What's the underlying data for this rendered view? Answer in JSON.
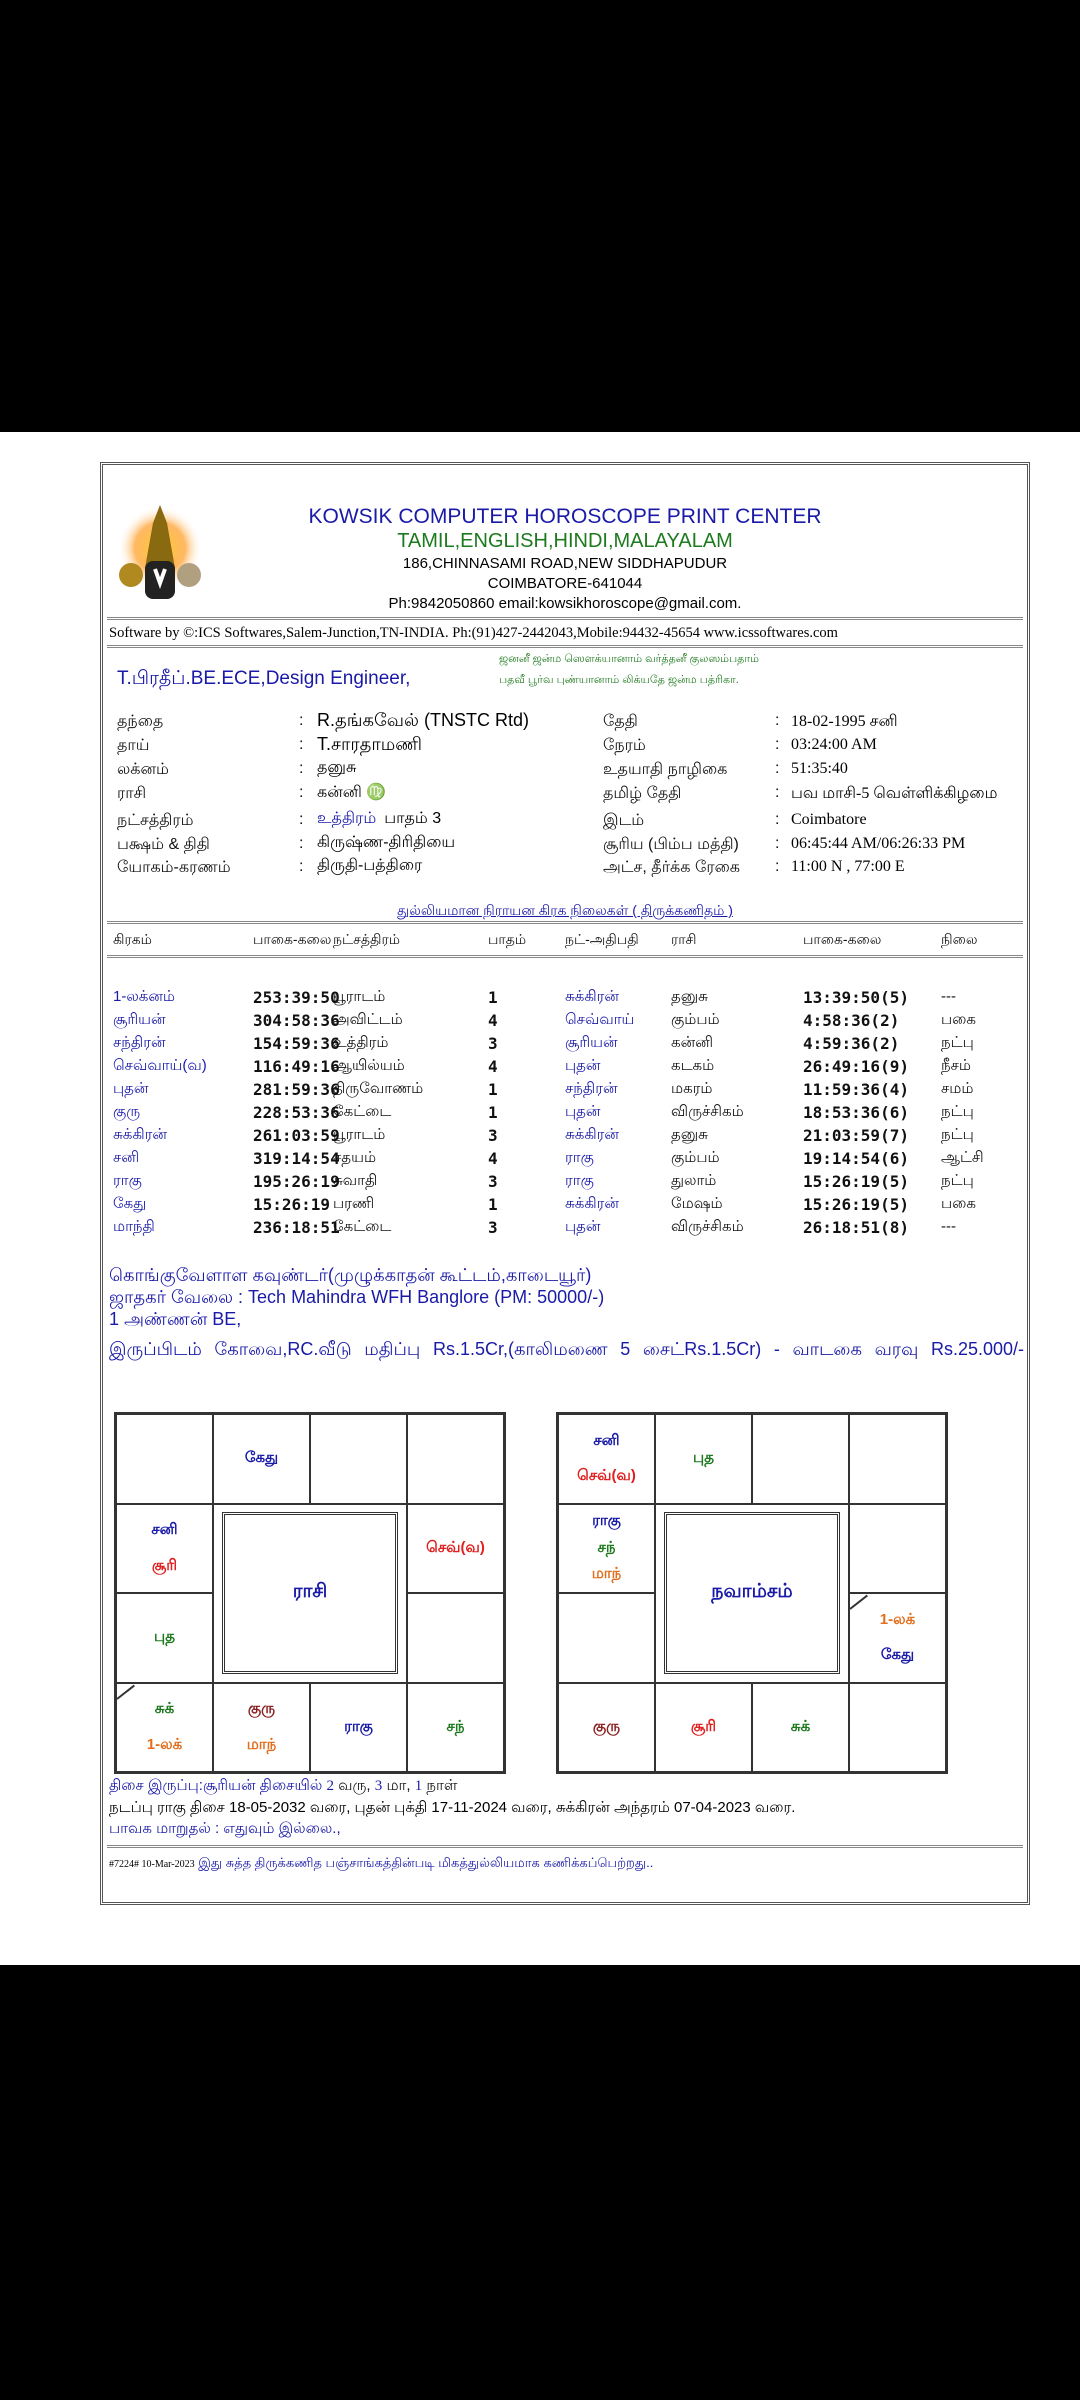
{
  "header": {
    "title": "KOWSIK COMPUTER HOROSCOPE PRINT CENTER",
    "languages": "TAMIL,ENGLISH,HINDI,MALAYALAM",
    "address1": "186,CHINNASAMI ROAD,NEW SIDDHAPUDUR",
    "address2": "COIMBATORE-641044",
    "contact": "Ph:9842050860 email:kowsikhoroscope@gmail.com.",
    "software": "Software by ©:ICS Softwares,Salem-Junction,TN-INDIA. Ph:(91)427-2442043,Mobile:94432-45654 www.icssoftwares.com",
    "colors": {
      "title": "#1a1aa8",
      "languages": "#1e7a1e"
    }
  },
  "person": {
    "name": "T.பிரதீப்.BE.ECE,Design Engineer,",
    "mantra1": "ஜனனீ ஜன்ம  ஸௌக்யானாம் வர்த்தனீ குலஸம்பதாம்",
    "mantra2": "பதவீ பூர்வ புண்யானாம் லிக்யதே ஜன்ம பத்ரிகா."
  },
  "details": {
    "left": [
      {
        "label": "தந்தை",
        "value": "R.தங்கவேல் (TNSTC Rtd)"
      },
      {
        "label": "தாய்",
        "value": "T.சாரதாமணி"
      },
      {
        "label": "லக்னம்",
        "value": "தனுசு"
      },
      {
        "label": "ராசி",
        "value": "கன்னி  ♍"
      },
      {
        "label": "நட்சத்திரம்",
        "value": "உத்திரம்",
        "extra": "பாதம்  3"
      },
      {
        "label": "பக்ஷம் & திதி",
        "value": "கிருஷ்ண-திரிதியை"
      },
      {
        "label": "யோகம்-கரணம்",
        "value": "திருதி-பத்திரை"
      }
    ],
    "right": [
      {
        "label": "தேதி",
        "value": "18-02-1995 சனி"
      },
      {
        "label": "நேரம்",
        "value": "03:24:00 AM"
      },
      {
        "label": "உதயாதி நாழிகை",
        "value": "51:35:40"
      },
      {
        "label": "தமிழ் தேதி",
        "value": "பவ மாசி-5 வெள்ளிக்கிழமை"
      },
      {
        "label": "இடம்",
        "value": "Coimbatore"
      },
      {
        "label": "சூரிய (பிம்ப மத்தி)",
        "value": "06:45:44 AM/06:26:33 PM"
      },
      {
        "label": "அட்ச, தீர்க்க ரேகை",
        "value": "11:00 N , 77:00 E"
      }
    ]
  },
  "planet_table": {
    "title": "துல்லியமான நிராயன கிரக நிலைகள் ( திருக்கணிதம் )",
    "headers": [
      "கிரகம்",
      "பாகை-கலை",
      "நட்சத்திரம்",
      "பாதம்",
      "நட்-அதிபதி",
      "ராசி",
      "பாகை-கலை",
      "நிலை"
    ],
    "rows": [
      [
        "1-லக்னம்",
        "253:39:50",
        "பூராடம்",
        "1",
        "சுக்கிரன்",
        "தனுசு",
        "13:39:50(5)",
        "---"
      ],
      [
        "சூரியன்",
        "304:58:36",
        "அவிட்டம்",
        "4",
        "செவ்வாய்",
        "கும்பம்",
        "4:58:36(2)",
        "பகை"
      ],
      [
        "சந்திரன்",
        "154:59:36",
        "உத்திரம்",
        "3",
        "சூரியன்",
        "கன்னி",
        "4:59:36(2)",
        "நட்பு"
      ],
      [
        "செவ்வாய்(வ)",
        "116:49:16",
        "ஆயில்யம்",
        "4",
        "புதன்",
        "கடகம்",
        "26:49:16(9)",
        "நீசம்"
      ],
      [
        "புதன்",
        "281:59:36",
        "திருவோணம்",
        "1",
        "சந்திரன்",
        "மகரம்",
        "11:59:36(4)",
        "சமம்"
      ],
      [
        "குரு",
        "228:53:36",
        "கேட்டை",
        "1",
        "புதன்",
        "விருச்சிகம்",
        "18:53:36(6)",
        "நட்பு"
      ],
      [
        "சுக்கிரன்",
        "261:03:59",
        "பூராடம்",
        "3",
        "சுக்கிரன்",
        "தனுசு",
        "21:03:59(7)",
        "நட்பு"
      ],
      [
        "சனி",
        "319:14:54",
        "சதயம்",
        "4",
        "ராகு",
        "கும்பம்",
        "19:14:54(6)",
        "ஆட்சி"
      ],
      [
        "ராகு",
        "195:26:19",
        "சுவாதி",
        "3",
        "ராகு",
        "துலாம்",
        "15:26:19(5)",
        "நட்பு"
      ],
      [
        "கேது",
        "15:26:19",
        "பரணி",
        "1",
        "சுக்கிரன்",
        "மேஷம்",
        "15:26:19(5)",
        "பகை"
      ],
      [
        "மாந்தி",
        "236:18:51",
        "கேட்டை",
        "3",
        "புதன்",
        "விருச்சிகம்",
        "26:18:51(8)",
        "---"
      ]
    ]
  },
  "notes": [
    "கொங்குவேளாள கவுண்டர்(முழுக்காதன் கூட்டம்,காடையூர்)",
    "ஜாதகர் வேலை : Tech Mahindra WFH Banglore (PM: 50000/-)",
    "1 அண்ணன் BE,",
    "இருப்பிடம் கோவை,RC.வீடு மதிப்பு Rs.1.5Cr,(காலிமணை 5 சைட்Rs.1.5Cr) - வாடகை வரவு Rs.25.000/-"
  ],
  "charts": [
    {
      "title": "ராசி",
      "cells": [
        [],
        [
          {
            "t": "கேது",
            "c": "#1a1aa8"
          }
        ],
        [],
        [],
        [
          {
            "t": "சனி",
            "c": "#1a1aa8"
          },
          {
            "t": "சூரி",
            "c": "#e02020"
          }
        ],
        [
          {
            "t": "செவ்(வ)",
            "c": "#e02020"
          }
        ],
        [
          {
            "t": "புத",
            "c": "#1e7a1e"
          }
        ],
        [],
        [
          {
            "t": "சுக்",
            "c": "#1e7a1e"
          },
          {
            "t": "1-லக்",
            "c": "#e07020"
          }
        ],
        [
          {
            "t": "குரு",
            "c": "#8b2020"
          },
          {
            "t": "மாந்",
            "c": "#e07020"
          }
        ],
        [
          {
            "t": "ராகு",
            "c": "#1a1aa8"
          }
        ],
        [
          {
            "t": "சந்",
            "c": "#1e7a1e"
          }
        ]
      ]
    },
    {
      "title": "நவாம்சம்",
      "cells": [
        [
          {
            "t": "சனி",
            "c": "#1a1aa8"
          },
          {
            "t": "செவ்(வ)",
            "c": "#e02020"
          }
        ],
        [
          {
            "t": "புத",
            "c": "#1e7a1e"
          }
        ],
        [],
        [],
        [
          {
            "t": "ராகு",
            "c": "#1a1aa8"
          },
          {
            "t": "சந்",
            "c": "#1e7a1e"
          },
          {
            "t": "மாந்",
            "c": "#e07020"
          }
        ],
        [],
        [],
        [
          {
            "t": "1-லக்",
            "c": "#e07020"
          },
          {
            "t": "கேது",
            "c": "#1a1aa8"
          }
        ],
        [
          {
            "t": "குரு",
            "c": "#8b2020"
          }
        ],
        [
          {
            "t": "சூரி",
            "c": "#e02020"
          }
        ],
        [
          {
            "t": "சுக்",
            "c": "#1e7a1e"
          }
        ],
        []
      ]
    }
  ],
  "dasa": {
    "line1_a": "திசை இருப்பு:சூரியன் திசையில்",
    "y": "2",
    "y_l": "வரு,",
    "m": "3",
    "m_l": "மா,",
    "d": "1",
    "d_l": "நாள்",
    "line2": "நடப்பு ராகு திசை 18-05-2032 வரை, புதன் புக்தி 17-11-2024 வரை, சுக்கிரன் அந்தரம் 07-04-2023 வரை.",
    "line3": "பாவக மாறுதல் : எதுவும் இல்லை.,"
  },
  "footer": {
    "code": "#7224# 10-Mar-2023",
    "text": "இது சுத்த திருக்கணித பஞ்சாங்கத்தின்படி மிகத்துல்லியமாக கணிக்கப்பெற்றது.."
  }
}
